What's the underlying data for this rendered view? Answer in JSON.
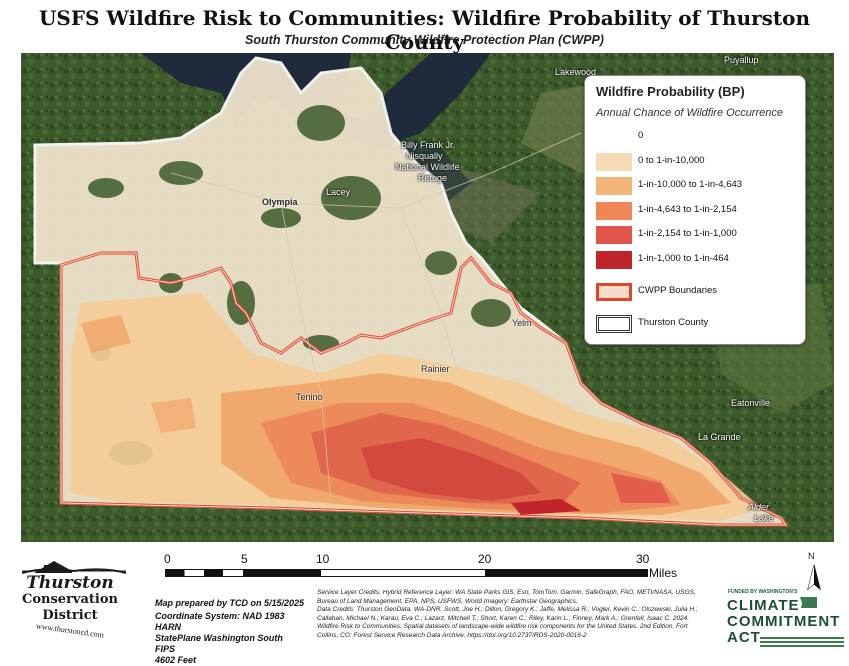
{
  "title": "USFS Wildfire Risk to Communities: Wildfire Probability of Thurston County",
  "subtitle": "South Thurston Community Wildfire Protection Plan (CWPP)",
  "legend": {
    "title": "Wildfire Probability (BP)",
    "subtitle": "Annual Chance of Wildfire Occurrence",
    "items": [
      {
        "label": "0",
        "color": "#ffffff",
        "border": "none"
      },
      {
        "label": "0 to 1-in-10,000",
        "color": "#f6dcb6",
        "border": "none"
      },
      {
        "label": "1-in-10,000 to 1-in-4,643",
        "color": "#f2b477",
        "border": "none"
      },
      {
        "label": "1-in-4,643 to 1-in-2,154",
        "color": "#ef8759",
        "border": "none"
      },
      {
        "label": "1-in-2,154 to 1-in-1,000",
        "color": "#e0554a",
        "border": "none"
      },
      {
        "label": "1-in-1,000 to 1-in-464",
        "color": "#c0252b",
        "border": "none"
      },
      {
        "label": "CWPP Boundaries",
        "color": "#f4dcc8",
        "border": "#e0452b"
      },
      {
        "label": "Thurston County",
        "color": "#ffffff",
        "border": "#333333"
      }
    ]
  },
  "places": [
    "Puyallup",
    "Lakewood",
    "Billy Frank Jr.",
    "Nisqually",
    "National Wildlife",
    "Refuge",
    "Olympia",
    "Lacey",
    "Yelm",
    "Rainier",
    "Tenino",
    "Eatonville",
    "La Grande",
    "Alder",
    "Lake"
  ],
  "scalebar": {
    "ticks": [
      "0",
      "5",
      "10",
      "20",
      "30"
    ],
    "unit": "Miles"
  },
  "north_label": "N",
  "prepared_by": "Map prepared by TCD on 5/15/2025",
  "coordinate_system": [
    "Coordinate System: NAD 1983 HARN",
    "StatePlane Washington South FIPS",
    "4602 Feet"
  ],
  "credits": {
    "service_layer": "Service Layer Credits: Hybrid Reference Layer: WA State Parks GIS, Esri, TomTom, Garmin, SafeGraph, FAO, METI/NASA, USGS, Bureau of Land Management, EPA, NPS, USFWS, World Imagery: Earthstar Geographics.",
    "data": "Data Credits: Thurston GeoData, WA-DNR. Scott, Joe H.; Dillon, Gregory K.; Jaffe, Melissa R.; Vogler, Kevin C.; Olszewski, Julia H.; Callahan, Michael N.; Karau, Eva C.; Lazarz, Mitchell T.; Short, Karen C.; Riley, Karin L.; Finney, Mark A.; Grenfell, Isaac C. 2024. Wildfire Risk to Communities: Spatial datasets of landscape-wide wildfire risk components for the United States. 2nd Edition. Fort Collins, CO: Forest Service Research Data Archive. https://doi.org/10.2737/RDS-2020-0016-2"
  },
  "logo": {
    "line1": "Thurston",
    "line2": "Conservation",
    "line3": "District",
    "url": "www.thurstoncd.com"
  },
  "cca": {
    "funded": "FUNDED BY WASHINGTON'S",
    "line1": "CLIMATE",
    "line2": "COMMITMENT",
    "line3": "ACT"
  }
}
